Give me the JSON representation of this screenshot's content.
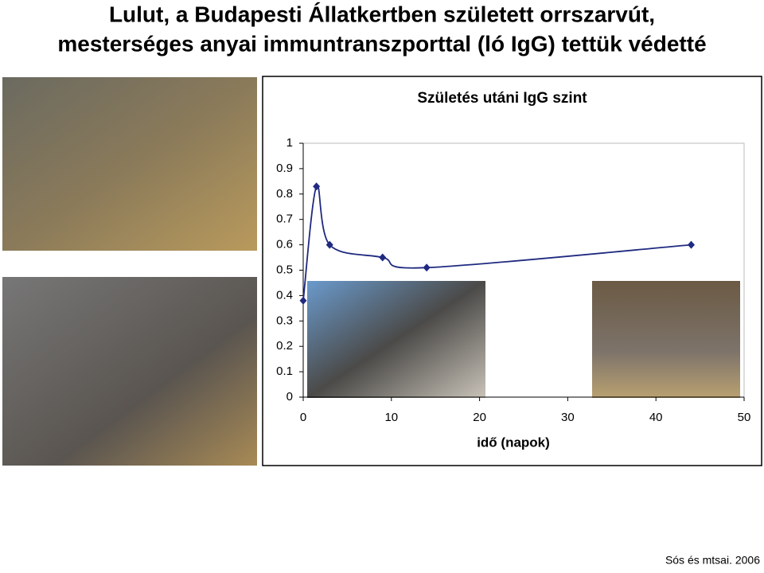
{
  "slide": {
    "title_lines": [
      "Lulut, a Budapesti Állatkertben született orrszarvút,",
      "mesterséges anyai immuntranszporttal (ló IgG) tettük védetté"
    ],
    "citation": "Sós és mtsai. 2006"
  },
  "chart_data": {
    "type": "line",
    "title": "Születés utáni IgG szint",
    "x_label": "idő (napok)",
    "x": [
      0,
      1.5,
      3,
      9,
      14,
      44
    ],
    "series": [
      {
        "color": "#1f2a80",
        "values": [
          0.38,
          0.83,
          0.6,
          0.55,
          0.51,
          0.6
        ]
      }
    ],
    "xlim": [
      0,
      50
    ],
    "xticks": [
      0,
      10,
      20,
      30,
      40,
      50
    ],
    "ylim": [
      0,
      1
    ],
    "yticks": [
      0,
      0.1,
      0.2,
      0.3,
      0.4,
      0.5,
      0.6,
      0.7,
      0.8,
      0.9,
      1
    ],
    "grid": false,
    "smooth": true
  }
}
